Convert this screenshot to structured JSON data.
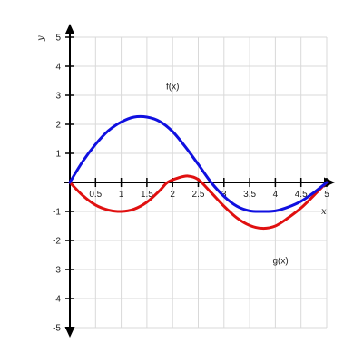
{
  "chart_data": {
    "type": "line",
    "xlabel": "x",
    "ylabel": "y",
    "xlim": [
      0,
      5
    ],
    "ylim": [
      -5,
      5
    ],
    "grid": true,
    "x_ticks": [
      "0.5",
      "1",
      "1.5",
      "2",
      "2.5",
      "3",
      "3.5",
      "4",
      "4.5",
      "5"
    ],
    "y_ticks": [
      "5",
      "4",
      "3",
      "2",
      "1",
      "-1",
      "-2",
      "-3",
      "-4",
      "-5"
    ],
    "series": [
      {
        "name": "f(x)",
        "color": "#1010e0",
        "x": [
          0,
          0.25,
          0.5,
          0.75,
          1,
          1.25,
          1.5,
          1.75,
          2,
          2.25,
          2.5,
          2.75,
          3,
          3.25,
          3.5,
          3.75,
          4,
          4.25,
          4.5,
          4.75,
          5
        ],
        "y": [
          0,
          0.72,
          1.31,
          1.78,
          2.08,
          2.25,
          2.25,
          2.1,
          1.75,
          1.22,
          0.62,
          0,
          -0.48,
          -0.82,
          -0.98,
          -1.0,
          -0.98,
          -0.85,
          -0.65,
          -0.35,
          0
        ]
      },
      {
        "name": "g(x)",
        "color": "#e01010",
        "x": [
          0,
          0.25,
          0.5,
          0.75,
          1,
          1.25,
          1.5,
          1.75,
          1.9,
          2.1,
          2.3,
          2.5,
          2.75,
          3,
          3.25,
          3.5,
          3.75,
          4,
          4.25,
          4.5,
          4.75,
          5
        ],
        "y": [
          0,
          -0.45,
          -0.78,
          -0.95,
          -1.0,
          -0.92,
          -0.68,
          -0.28,
          0,
          0.15,
          0.22,
          0.1,
          -0.35,
          -0.82,
          -1.22,
          -1.48,
          -1.58,
          -1.5,
          -1.22,
          -0.88,
          -0.45,
          0
        ]
      }
    ],
    "annotations": [
      {
        "text": "f(x)",
        "x": 2.0,
        "y": 3.2
      },
      {
        "text": "g(x)",
        "x": 4.1,
        "y": -2.8
      }
    ]
  }
}
